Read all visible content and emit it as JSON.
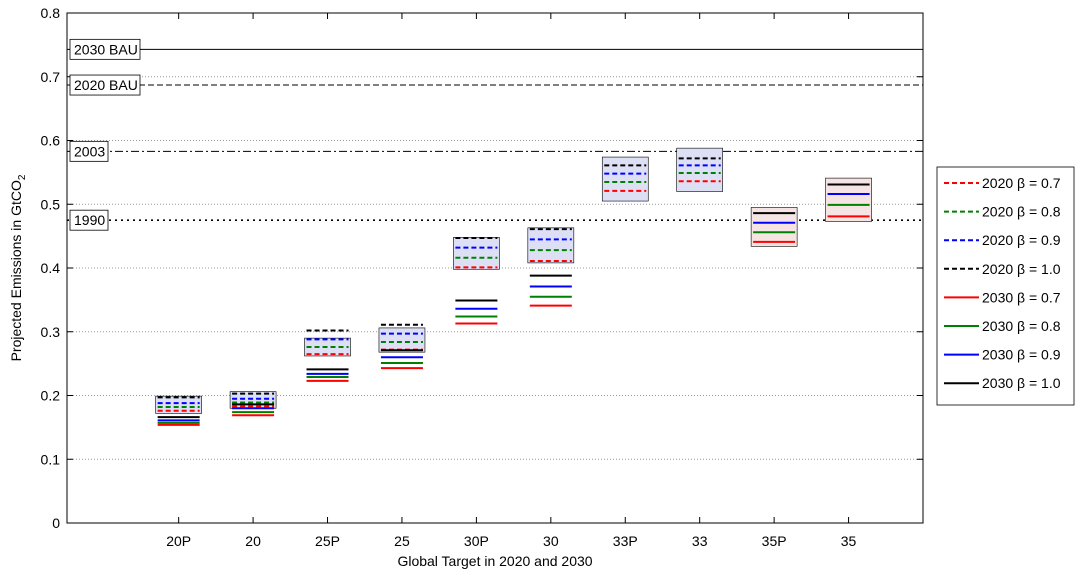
{
  "chart_data": {
    "type": "box-range",
    "xlabel": "Global Target in 2020 and 2030",
    "ylabel_main": "Projected Emissions in GtCO",
    "ylabel_sub": "2",
    "ylim": [
      0,
      0.8
    ],
    "yticks": [
      "0",
      "0.1",
      "0.2",
      "0.3",
      "0.4",
      "0.5",
      "0.6",
      "0.7",
      "0.8"
    ],
    "ytick_values": [
      0,
      0.1,
      0.2,
      0.3,
      0.4,
      0.5,
      0.6,
      0.7,
      0.8
    ],
    "categories": [
      "20P",
      "20",
      "25P",
      "25",
      "30P",
      "30",
      "33P",
      "33",
      "35P",
      "35"
    ],
    "grid": "horizontal-dotted",
    "reference_lines": [
      {
        "label": "2030 BAU",
        "value": 0.743,
        "style": "solid"
      },
      {
        "label": "2020 BAU",
        "value": 0.687,
        "style": "dashed"
      },
      {
        "label": "2003",
        "value": 0.583,
        "style": "dashdot"
      },
      {
        "label": "1990",
        "value": 0.475,
        "style": "dotted"
      }
    ],
    "colors": {
      "b07": "#ff0000",
      "b08": "#008000",
      "b09": "#0000ff",
      "b10": "#000000",
      "box2020": "#dde0f5",
      "box2030": "#f6e4e4"
    },
    "legend_position": "right",
    "series": [
      {
        "name": "2020 β = 0.7",
        "year": "2020",
        "beta": "0.7",
        "color": "#ff0000",
        "dash": "dashed",
        "values": [
          0.176,
          0.183,
          0.265,
          0.272,
          0.401,
          0.411,
          0.521,
          0.536,
          null,
          null
        ]
      },
      {
        "name": "2020 β = 0.8",
        "year": "2020",
        "beta": "0.8",
        "color": "#008000",
        "dash": "dashed",
        "values": [
          0.182,
          0.189,
          0.276,
          0.284,
          0.416,
          0.428,
          0.535,
          0.549,
          null,
          null
        ]
      },
      {
        "name": "2020 β = 0.9",
        "year": "2020",
        "beta": "0.9",
        "color": "#0000ff",
        "dash": "dashed",
        "values": [
          0.188,
          0.195,
          0.288,
          0.297,
          0.432,
          0.445,
          0.548,
          0.561,
          null,
          null
        ]
      },
      {
        "name": "2020 β = 1.0",
        "year": "2020",
        "beta": "1.0",
        "color": "#000000",
        "dash": "dashed",
        "values": [
          0.197,
          0.203,
          0.302,
          0.311,
          0.447,
          0.461,
          0.561,
          0.572,
          null,
          null
        ]
      },
      {
        "name": "2030 β = 0.7",
        "year": "2030",
        "beta": "0.7",
        "color": "#ff0000",
        "dash": "solid",
        "values": [
          0.154,
          0.169,
          0.223,
          0.243,
          0.313,
          0.341,
          null,
          null,
          0.441,
          0.481
        ]
      },
      {
        "name": "2030 β = 0.8",
        "year": "2030",
        "beta": "0.8",
        "color": "#008000",
        "dash": "solid",
        "values": [
          0.157,
          0.174,
          0.229,
          0.251,
          0.324,
          0.355,
          null,
          null,
          0.456,
          0.499
        ]
      },
      {
        "name": "2030 β = 0.9",
        "year": "2030",
        "beta": "0.9",
        "color": "#0000ff",
        "dash": "solid",
        "values": [
          0.161,
          0.18,
          0.234,
          0.26,
          0.336,
          0.371,
          null,
          null,
          0.471,
          0.516
        ]
      },
      {
        "name": "2030 β = 1.0",
        "year": "2030",
        "beta": "1.0",
        "color": "#000000",
        "dash": "solid",
        "values": [
          0.166,
          0.186,
          0.241,
          0.271,
          0.349,
          0.388,
          null,
          null,
          0.486,
          0.531
        ]
      }
    ],
    "boxes": [
      {
        "category": "20P",
        "year": "2020",
        "low": 0.172,
        "high": 0.199
      },
      {
        "category": "20",
        "year": "2020",
        "low": 0.18,
        "high": 0.206
      },
      {
        "category": "25P",
        "year": "2020",
        "low": 0.262,
        "high": 0.29
      },
      {
        "category": "25",
        "year": "2020",
        "low": 0.268,
        "high": 0.306
      },
      {
        "category": "30P",
        "year": "2020",
        "low": 0.398,
        "high": 0.448
      },
      {
        "category": "30",
        "year": "2020",
        "low": 0.408,
        "high": 0.463
      },
      {
        "category": "33P",
        "year": "2020",
        "low": 0.505,
        "high": 0.574
      },
      {
        "category": "33",
        "year": "2020",
        "low": 0.52,
        "high": 0.588
      },
      {
        "category": "35P",
        "year": "2030",
        "low": 0.434,
        "high": 0.495
      },
      {
        "category": "35",
        "year": "2030",
        "low": 0.473,
        "high": 0.541
      }
    ]
  }
}
